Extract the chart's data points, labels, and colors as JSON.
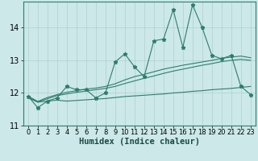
{
  "xlabel": "Humidex (Indice chaleur)",
  "x": [
    0,
    1,
    2,
    3,
    4,
    5,
    6,
    7,
    8,
    9,
    10,
    11,
    12,
    13,
    14,
    15,
    16,
    17,
    18,
    19,
    20,
    21,
    22,
    23
  ],
  "y_main": [
    11.9,
    11.55,
    11.75,
    11.85,
    12.2,
    12.1,
    12.1,
    11.85,
    12.0,
    12.95,
    13.2,
    12.8,
    12.5,
    13.6,
    13.65,
    14.55,
    13.4,
    14.7,
    14.0,
    13.15,
    13.05,
    13.15,
    12.2,
    11.95
  ],
  "y_lower": [
    11.85,
    11.72,
    11.75,
    11.78,
    11.75,
    11.77,
    11.79,
    11.81,
    11.83,
    11.86,
    11.89,
    11.91,
    11.93,
    11.95,
    11.97,
    12.0,
    12.02,
    12.05,
    12.07,
    12.1,
    12.12,
    12.14,
    12.17,
    12.2
  ],
  "y_mid1": [
    11.9,
    11.72,
    11.82,
    11.92,
    11.97,
    12.02,
    12.06,
    12.1,
    12.14,
    12.2,
    12.29,
    12.37,
    12.45,
    12.52,
    12.6,
    12.67,
    12.73,
    12.79,
    12.85,
    12.9,
    12.96,
    13.0,
    13.03,
    13.0
  ],
  "y_mid2": [
    11.9,
    11.74,
    11.86,
    11.95,
    12.02,
    12.07,
    12.12,
    12.15,
    12.2,
    12.28,
    12.4,
    12.5,
    12.57,
    12.65,
    12.73,
    12.79,
    12.85,
    12.9,
    12.95,
    13.0,
    13.06,
    13.1,
    13.13,
    13.08
  ],
  "ylim": [
    11.0,
    14.8
  ],
  "xlim": [
    -0.5,
    23.5
  ],
  "bg_color": "#cce8e8",
  "line_color": "#2e7d6e",
  "grid_color": "#aed0d0",
  "tick_fontsize": 6,
  "label_fontsize": 7.5
}
